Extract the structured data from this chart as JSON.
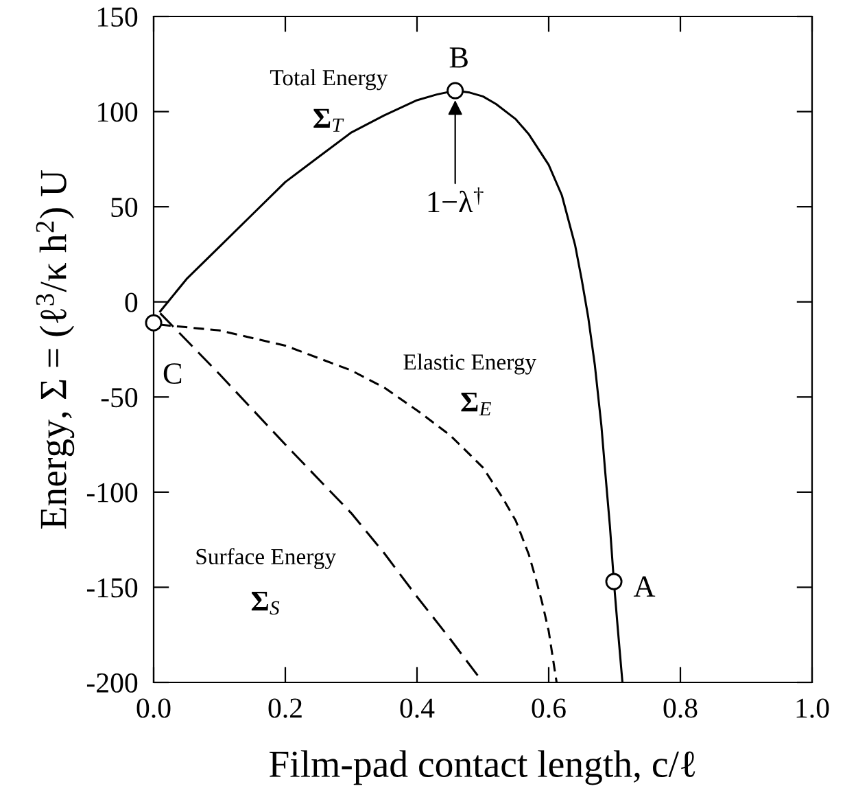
{
  "chart_data": {
    "type": "line",
    "xlabel": "Film-pad contact length, c/ℓ",
    "ylabel": "Energy, Σ = (ℓ$^{3}$/κ h$^{2}$) U",
    "xlim": [
      0,
      1
    ],
    "ylim": [
      -200,
      150
    ],
    "xticks": [
      {
        "value": 0,
        "label": "0.0"
      },
      0.2,
      0.4,
      0.6,
      0.8,
      {
        "value": 1,
        "label": "1.0"
      }
    ],
    "yticks": [
      -200,
      -150,
      -100,
      -50,
      0,
      50,
      100,
      150
    ],
    "grid": false,
    "legend": false,
    "series": [
      {
        "name": "Total Energy",
        "color": "#000000",
        "line_style": "solid",
        "marker": "none",
        "x": [
          0.01,
          0.05,
          0.1,
          0.15,
          0.2,
          0.25,
          0.3,
          0.35,
          0.4,
          0.43,
          0.458,
          0.48,
          0.5,
          0.52,
          0.55,
          0.57,
          0.6,
          0.62,
          0.64,
          0.65,
          0.66,
          0.67,
          0.68,
          0.686,
          0.693,
          0.699,
          0.705,
          0.712
        ],
        "values": [
          -5,
          12,
          29,
          46,
          63,
          76,
          89,
          98,
          106,
          109,
          111,
          110,
          108,
          104,
          96,
          88,
          72,
          56,
          30,
          12,
          -8,
          -33,
          -65,
          -90,
          -118,
          -147,
          -172,
          -200
        ]
      },
      {
        "name": "Elastic Energy",
        "color": "#000000",
        "line_style": "dashed",
        "marker": "none",
        "x": [
          0.01,
          0.1,
          0.2,
          0.3,
          0.35,
          0.4,
          0.45,
          0.5,
          0.53,
          0.55,
          0.57,
          0.58,
          0.59,
          0.6,
          0.612
        ],
        "values": [
          -12,
          -15,
          -23,
          -36,
          -45,
          -57,
          -70,
          -87,
          -103,
          -115,
          -133,
          -145,
          -158,
          -173,
          -200
        ]
      },
      {
        "name": "Surface Energy",
        "color": "#000000",
        "line_style": "dashed",
        "marker": "none",
        "x": [
          0.01,
          0.1,
          0.2,
          0.3,
          0.35,
          0.4,
          0.45,
          0.5
        ],
        "values": [
          -6,
          -38,
          -75,
          -111,
          -132,
          -155,
          -177,
          -200
        ]
      },
      {
        "type": "scatter",
        "color": "#000000",
        "marker": "circle",
        "x": [
          0.0,
          0.458,
          0.699
        ],
        "values": [
          -11,
          111,
          -147
        ]
      }
    ],
    "annotations": [
      {
        "text": "C",
        "x": 0.0,
        "y": -11
      },
      {
        "text": "B",
        "x": 0.458,
        "y": 111
      },
      {
        "text": "A",
        "x": 0.699,
        "y": -147
      },
      {
        "text": "1−λ$^{†}$",
        "x": 0.458,
        "y": 111
      },
      "Σ$_{T}$",
      "Σ$_{E}$",
      "Σ$_{S}$"
    ]
  }
}
